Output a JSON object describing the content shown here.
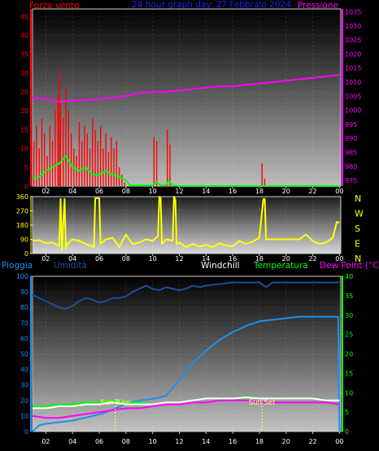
{
  "chart_data": [
    {
      "type": "line",
      "title": "24 hour graph day: 27 Febbraio 2024",
      "left_label": "Forza vento",
      "right_label": "Pressione",
      "x_ticks": [
        "02",
        "04",
        "06",
        "08",
        "10",
        "12",
        "14",
        "16",
        "18",
        "20",
        "22",
        "00"
      ],
      "xlim": [
        1.0,
        24.1
      ],
      "y_left_ticks": [
        "0",
        "5",
        "10",
        "15",
        "20",
        "25",
        "30",
        "35",
        "40",
        "45"
      ],
      "ylim_left": [
        0,
        47
      ],
      "y_right_ticks": [
        "975",
        "980",
        "985",
        "990",
        "995",
        "1000",
        "1005",
        "1010",
        "1015",
        "1020",
        "1025",
        "1030",
        "1035"
      ],
      "ylim_right": [
        973,
        1036
      ],
      "series": [
        {
          "key": "wind_gust",
          "style": "bars",
          "color": "#ff0000",
          "x": [
            1.1,
            1.3,
            1.5,
            1.7,
            1.9,
            2.1,
            2.3,
            2.5,
            2.7,
            2.9,
            3.0,
            3.1,
            3.3,
            3.5,
            3.7,
            3.9,
            4.1,
            4.3,
            4.5,
            4.7,
            4.9,
            5.1,
            5.3,
            5.5,
            5.7,
            5.9,
            6.1,
            6.3,
            6.5,
            6.7,
            6.9,
            7.1,
            7.3,
            7.5,
            7.7,
            7.9,
            10.1,
            10.3,
            11.1,
            11.3,
            18.2,
            18.4
          ],
          "values": [
            12,
            16,
            10,
            18,
            14,
            8,
            16,
            12,
            20,
            24,
            31,
            22,
            18,
            26,
            20,
            14,
            10,
            8,
            17,
            12,
            16,
            14,
            10,
            18,
            15,
            12,
            16,
            10,
            14,
            9,
            13,
            10,
            12,
            5,
            3,
            1,
            13,
            12,
            15,
            11,
            6,
            2
          ]
        },
        {
          "key": "wind_avg",
          "style": "line",
          "color": "#00ff00",
          "x": [
            1.0,
            1.5,
            2.0,
            2.5,
            3.0,
            3.5,
            4.0,
            4.5,
            5.0,
            5.5,
            6.0,
            6.5,
            7.0,
            7.5,
            8.0,
            8.3,
            10.0,
            10.3,
            10.6,
            11.0,
            11.2,
            11.5,
            12.0,
            18.0,
            24.0
          ],
          "values": [
            2,
            2.5,
            4,
            5,
            6,
            8,
            5,
            4,
            5,
            3,
            3,
            4,
            3,
            2.5,
            1.5,
            0.2,
            0.2,
            1,
            0.2,
            0.2,
            1.5,
            0.2,
            0,
            0,
            0
          ]
        },
        {
          "key": "pressure",
          "style": "line",
          "color": "#ff00ff",
          "axis": "right",
          "x": [
            1.0,
            2.0,
            3.0,
            4.0,
            5.0,
            6.0,
            7.0,
            8.0,
            9.0,
            10.0,
            11.0,
            12.0,
            13.0,
            14.0,
            15.0,
            16.0,
            17.0,
            18.0,
            19.0,
            20.0,
            21.0,
            22.0,
            23.0,
            24.0
          ],
          "values": [
            1004.5,
            1004,
            1003,
            1003.5,
            1003.5,
            1004,
            1004.5,
            1005,
            1006,
            1006.5,
            1006.5,
            1007,
            1007.5,
            1008,
            1008.5,
            1008.5,
            1009,
            1009.5,
            1010,
            1010.5,
            1011,
            1011.5,
            1012,
            1012.5
          ]
        }
      ]
    },
    {
      "type": "line",
      "title": "",
      "x_ticks": [
        "02",
        "04",
        "06",
        "08",
        "10",
        "12",
        "14",
        "16",
        "18",
        "20",
        "22",
        "00"
      ],
      "xlim": [
        1.0,
        24.1
      ],
      "y_left_ticks": [
        "0",
        "90",
        "180",
        "270",
        "360"
      ],
      "ylim_left": [
        0,
        360
      ],
      "compass": [
        "N",
        "W",
        "S",
        "E",
        "N"
      ],
      "series": [
        {
          "key": "wind_direction",
          "style": "line",
          "color": "#ffff00",
          "x": [
            1.0,
            1.5,
            2.0,
            2.5,
            3.0,
            3.1,
            3.2,
            3.4,
            3.5,
            3.6,
            4.0,
            4.5,
            5.0,
            5.6,
            5.7,
            6.0,
            6.1,
            6.5,
            7.0,
            7.5,
            8.0,
            8.5,
            9.0,
            9.5,
            10.0,
            10.4,
            10.5,
            10.6,
            10.7,
            11.0,
            11.5,
            11.6,
            11.7,
            11.8,
            12.0,
            12.5,
            13.0,
            13.5,
            14.0,
            14.5,
            15.0,
            15.5,
            16.0,
            16.5,
            17.0,
            17.5,
            18.0,
            18.3,
            18.4,
            18.5,
            19.0,
            20.0,
            21.0,
            21.5,
            22.0,
            22.5,
            23.0,
            23.5,
            23.8,
            24.0
          ],
          "values": [
            80,
            85,
            65,
            70,
            50,
            345,
            20,
            345,
            30,
            60,
            90,
            80,
            60,
            40,
            350,
            350,
            60,
            90,
            100,
            40,
            120,
            60,
            70,
            90,
            80,
            110,
            360,
            350,
            60,
            90,
            80,
            360,
            340,
            60,
            70,
            40,
            60,
            45,
            55,
            40,
            65,
            50,
            45,
            80,
            60,
            75,
            100,
            345,
            345,
            90,
            90,
            90,
            90,
            120,
            80,
            60,
            70,
            100,
            200,
            195
          ]
        }
      ]
    },
    {
      "type": "line",
      "title": "",
      "labels": [
        "Pioggia",
        "Umidità",
        "Windchill",
        "Temperatura",
        "Dew Point (°C)"
      ],
      "x_ticks": [
        "02",
        "04",
        "06",
        "08",
        "10",
        "12",
        "14",
        "16",
        "18",
        "20",
        "22",
        "00"
      ],
      "xlim": [
        1.0,
        24.1
      ],
      "y_left_ticks": [
        "0",
        "10",
        "20",
        "30",
        "40",
        "50",
        "60",
        "70",
        "80",
        "90",
        "100"
      ],
      "ylim_left": [
        0,
        100
      ],
      "y_right_ticks": [
        "0",
        "5",
        "10",
        "15",
        "20",
        "25",
        "30",
        "35",
        "40"
      ],
      "ylim_right": [
        0,
        40
      ],
      "annotations": [
        {
          "text": "Sun Rise",
          "x": 7.2
        },
        {
          "text": "Sun Set",
          "x": 18.2
        }
      ],
      "series": [
        {
          "key": "humidity",
          "style": "line",
          "color": "#1a4f9a",
          "x": [
            1.0,
            1.5,
            2.0,
            2.5,
            3.0,
            3.5,
            4.0,
            4.5,
            5.0,
            5.5,
            6.0,
            6.5,
            7.0,
            7.5,
            8.0,
            8.5,
            9.0,
            9.5,
            10.0,
            10.5,
            11.0,
            11.5,
            12.0,
            12.5,
            13.0,
            13.5,
            14.0,
            15.0,
            16.0,
            17.0,
            18.0,
            18.5,
            19.0,
            20.0,
            21.0,
            22.0,
            23.0,
            24.0
          ],
          "values": [
            88,
            86,
            84,
            82,
            80,
            79,
            81,
            84,
            86,
            85,
            83,
            84,
            86,
            86,
            87,
            90,
            92,
            94,
            92,
            91,
            93,
            92,
            91,
            92,
            94,
            93,
            94,
            95,
            96,
            96,
            96,
            93,
            96,
            96,
            96,
            96,
            96,
            96
          ]
        },
        {
          "key": "rain",
          "style": "line",
          "color": "#1e8ef0",
          "x": [
            1.0,
            1.5,
            2.0,
            3.0,
            4.0,
            5.0,
            6.0,
            7.0,
            8.0,
            9.0,
            10.0,
            11.0,
            11.5,
            12.0,
            13.0,
            14.0,
            15.0,
            16.0,
            17.0,
            18.0,
            19.0,
            20.0,
            21.0,
            22.0,
            23.0,
            23.9,
            24.0
          ],
          "values": [
            0,
            4,
            5,
            6,
            7,
            9,
            11,
            14,
            18,
            20,
            21,
            23,
            28,
            33,
            44,
            52,
            59,
            64,
            68,
            71,
            72,
            73,
            74,
            74,
            74,
            74,
            0
          ]
        },
        {
          "key": "temperature",
          "style": "line",
          "color": "#00ff00",
          "axis": "right",
          "x": [
            1.0,
            2.0,
            3.0,
            4.0,
            5.0,
            6.0,
            7.0,
            8.0,
            9.0,
            10.0,
            11.0,
            12.0,
            13.0,
            14.0,
            15.0,
            16.0,
            17.0,
            18.0,
            19.0,
            20.0,
            21.0,
            22.0,
            23.0,
            24.0
          ],
          "values": [
            6.5,
            6.5,
            7,
            7,
            7.5,
            7.5,
            8,
            7.5,
            7.5,
            7,
            7.5,
            7.5,
            8,
            8.5,
            8.5,
            8.5,
            9,
            8.5,
            8.5,
            8.5,
            8.5,
            8.5,
            8,
            8
          ]
        },
        {
          "key": "windchill",
          "style": "line",
          "color": "#ffffff",
          "axis": "right",
          "x": [
            1.0,
            2.0,
            3.0,
            4.0,
            5.0,
            6.0,
            7.0,
            8.0,
            9.0,
            10.0,
            11.0,
            12.0,
            13.0,
            14.0,
            15.0,
            16.0,
            17.0,
            18.0,
            19.0,
            20.0,
            21.0,
            22.0,
            23.0,
            24.0
          ],
          "values": [
            6,
            6,
            6.5,
            6.5,
            7,
            7,
            7.5,
            7,
            7,
            7,
            7.5,
            7.5,
            8,
            8.5,
            8.5,
            8.5,
            8.8,
            8.5,
            8.5,
            8.5,
            8.5,
            8.5,
            8,
            8
          ]
        },
        {
          "key": "dew_point",
          "style": "line",
          "color": "#ff00ff",
          "axis": "right",
          "x": [
            1.0,
            2.0,
            3.0,
            4.0,
            5.0,
            6.0,
            7.0,
            8.0,
            9.0,
            10.0,
            11.0,
            12.0,
            13.0,
            14.0,
            15.0,
            16.0,
            17.0,
            18.0,
            19.0,
            20.0,
            21.0,
            22.0,
            23.0,
            24.0
          ],
          "values": [
            4,
            3.5,
            3.5,
            4,
            4.5,
            5,
            5.5,
            6,
            6,
            6.5,
            7,
            7,
            7.5,
            7.5,
            8,
            8,
            8,
            7.5,
            7.5,
            7.5,
            7.5,
            7.5,
            7.5,
            7
          ]
        }
      ]
    }
  ]
}
